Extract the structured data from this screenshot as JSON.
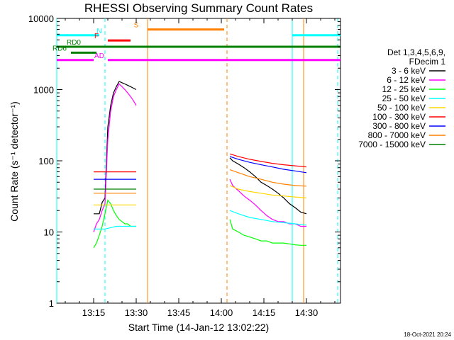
{
  "stamp": "18-Oct-2021 20:24",
  "chart_data": {
    "type": "line",
    "title": "RHESSI Observing Summary Count Rates",
    "xlabel": "Start Time (14-Jan-12 13:02:22)",
    "ylabel": "Count Rate (s⁻¹ detector⁻¹)",
    "y_scale": "log",
    "ylim": [
      1,
      10000
    ],
    "xlim": [
      "13:02",
      "14:42"
    ],
    "x_ticks": [
      "13:15",
      "13:30",
      "13:45",
      "14:00",
      "14:15",
      "14:30"
    ],
    "y_ticks": [
      "1",
      "10",
      "100",
      "1000",
      "10000"
    ],
    "legend": {
      "header": [
        "Det 1,3,4,5,6,9,",
        "FDecim 1"
      ],
      "position": "right"
    },
    "series": [
      {
        "name": "3 - 6 keV",
        "color": "#000000",
        "segments": [
          {
            "x": [
              "13:15",
              "13:16",
              "13:17",
              "13:18",
              "13:19",
              "13:20",
              "13:21",
              "13:22",
              "13:23",
              "13:24",
              "13:25",
              "13:26",
              "13:27",
              "13:28",
              "13:29",
              "13:30"
            ],
            "y": [
              18,
              18,
              18,
              26,
              30,
              300,
              600,
              900,
              1100,
              1300,
              1250,
              1200,
              1150,
              1100,
              1050,
              1000
            ]
          },
          {
            "x": [
              "14:03",
              "14:04",
              "14:06",
              "14:08",
              "14:10",
              "14:12",
              "14:14",
              "14:16",
              "14:18",
              "14:20",
              "14:22",
              "14:24",
              "14:26",
              "14:28",
              "14:30"
            ],
            "y": [
              110,
              100,
              90,
              80,
              70,
              60,
              50,
              45,
              40,
              35,
              30,
              25,
              22,
              19,
              18
            ]
          }
        ]
      },
      {
        "name": "6 - 12 keV",
        "color": "#ff00ff",
        "segments": [
          {
            "x": [
              "13:15",
              "13:16",
              "13:17",
              "13:18",
              "13:19",
              "13:20",
              "13:21",
              "13:22",
              "13:23",
              "13:24",
              "13:25",
              "13:26",
              "13:27",
              "13:28",
              "13:29",
              "13:30"
            ],
            "y": [
              10,
              13,
              15,
              20,
              25,
              200,
              500,
              800,
              1000,
              1200,
              1100,
              1000,
              900,
              800,
              700,
              600
            ]
          },
          {
            "x": [
              "14:03",
              "14:04",
              "14:06",
              "14:08",
              "14:10",
              "14:12",
              "14:14",
              "14:16",
              "14:18",
              "14:20",
              "14:22",
              "14:24",
              "14:26",
              "14:28",
              "14:30"
            ],
            "y": [
              55,
              45,
              38,
              32,
              28,
              24,
              20,
              17,
              15,
              14,
              14,
              13,
              13,
              12,
              12
            ]
          }
        ]
      },
      {
        "name": "12 - 25 keV",
        "color": "#00ff00",
        "segments": [
          {
            "x": [
              "13:15",
              "13:16",
              "13:17",
              "13:18",
              "13:19",
              "13:20",
              "13:21",
              "13:22",
              "13:23",
              "13:24",
              "13:25",
              "13:26",
              "13:27",
              "13:28",
              "13:29",
              "13:30"
            ],
            "y": [
              6,
              7,
              9,
              12,
              18,
              28,
              25,
              20,
              17,
              15,
              14,
              13,
              13,
              12,
              12,
              12
            ]
          },
          {
            "x": [
              "14:03",
              "14:04",
              "14:06",
              "14:08",
              "14:10",
              "14:12",
              "14:14",
              "14:16",
              "14:18",
              "14:20",
              "14:22",
              "14:24",
              "14:26",
              "14:28",
              "14:30"
            ],
            "y": [
              15,
              11,
              10,
              9,
              8.5,
              8,
              7.5,
              7.5,
              7,
              7,
              7,
              6.8,
              6.6,
              6.5,
              6.5
            ]
          }
        ]
      },
      {
        "name": "25 - 50 keV",
        "color": "#00ffff",
        "segments": [
          {
            "x": [
              "13:15",
              "13:17",
              "13:19",
              "13:21",
              "13:23",
              "13:25",
              "13:27",
              "13:29",
              "13:30"
            ],
            "y": [
              11,
              11,
              11,
              11.5,
              12,
              12,
              12,
              12,
              12
            ]
          },
          {
            "x": [
              "14:03",
              "14:06",
              "14:10",
              "14:14",
              "14:18",
              "14:22",
              "14:26",
              "14:30"
            ],
            "y": [
              20,
              18,
              16,
              15,
              14,
              13.5,
              13,
              12.5
            ]
          }
        ]
      },
      {
        "name": "50 - 100 keV",
        "color": "#ffd700",
        "segments": [
          {
            "x": [
              "13:15",
              "13:17",
              "13:19",
              "13:21",
              "13:23",
              "13:25",
              "13:27",
              "13:29",
              "13:30"
            ],
            "y": [
              24,
              24,
              24,
              24,
              24,
              24,
              24,
              24,
              24
            ]
          },
          {
            "x": [
              "14:03",
              "14:06",
              "14:10",
              "14:14",
              "14:18",
              "14:22",
              "14:26",
              "14:30"
            ],
            "y": [
              45,
              40,
              37,
              35,
              33,
              32,
              31,
              30
            ]
          }
        ]
      },
      {
        "name": "100 - 300 keV",
        "color": "#ff0000",
        "segments": [
          {
            "x": [
              "13:15",
              "13:17",
              "13:19",
              "13:21",
              "13:23",
              "13:25",
              "13:27",
              "13:29",
              "13:30"
            ],
            "y": [
              70,
              70,
              70,
              70,
              70,
              70,
              70,
              70,
              70
            ]
          },
          {
            "x": [
              "14:03",
              "14:06",
              "14:10",
              "14:14",
              "14:18",
              "14:22",
              "14:26",
              "14:30"
            ],
            "y": [
              125,
              115,
              105,
              98,
              92,
              88,
              85,
              82
            ]
          }
        ]
      },
      {
        "name": "300 - 800 keV",
        "color": "#0000ff",
        "segments": [
          {
            "x": [
              "13:15",
              "13:17",
              "13:19",
              "13:21",
              "13:23",
              "13:25",
              "13:27",
              "13:29",
              "13:30"
            ],
            "y": [
              55,
              55,
              55,
              55,
              55,
              55,
              55,
              55,
              55
            ]
          },
          {
            "x": [
              "14:03",
              "14:06",
              "14:10",
              "14:14",
              "14:18",
              "14:22",
              "14:26",
              "14:30"
            ],
            "y": [
              115,
              105,
              95,
              88,
              82,
              76,
              72,
              68
            ]
          }
        ]
      },
      {
        "name": "800 - 7000 keV",
        "color": "#ff8000",
        "segments": [
          {
            "x": [
              "13:15",
              "13:17",
              "13:19",
              "13:21",
              "13:23",
              "13:25",
              "13:27",
              "13:29",
              "13:30"
            ],
            "y": [
              35,
              35,
              35,
              35,
              35,
              35,
              35,
              35,
              35
            ]
          },
          {
            "x": [
              "14:03",
              "14:06",
              "14:10",
              "14:14",
              "14:18",
              "14:22",
              "14:26",
              "14:30"
            ],
            "y": [
              75,
              68,
              60,
              55,
              50,
              47,
              45,
              44
            ]
          }
        ]
      },
      {
        "name": "7000 - 15000 keV",
        "color": "#008000",
        "segments": [
          {
            "x": [
              "13:15",
              "13:17",
              "13:19",
              "13:21",
              "13:23",
              "13:25",
              "13:27",
              "13:29",
              "13:30"
            ],
            "y": [
              40,
              40,
              40,
              40,
              40,
              40,
              40,
              40,
              40
            ]
          }
        ]
      }
    ],
    "flags": [
      {
        "label": "N",
        "color": "#00ffff",
        "level": 5800,
        "label_at": "13:17",
        "segments": [
          [
            "13:02",
            "13:17"
          ],
          [
            "14:25",
            "14:42"
          ]
        ]
      },
      {
        "label": "S",
        "color": "#ff8000",
        "level": 7000,
        "label_at": "13:30",
        "segments": [
          [
            "13:34",
            "14:01"
          ]
        ]
      },
      {
        "label": "F",
        "color": "#ff0000",
        "level": 4900,
        "label_at": "13:16",
        "segments": [
          [
            "13:20",
            "13:28"
          ]
        ]
      },
      {
        "label": "RD0",
        "color": "#008000",
        "level": 4000,
        "label_at": "13:08",
        "segments": [
          [
            "13:02",
            "14:42"
          ]
        ]
      },
      {
        "label": "RD6",
        "color": "#008000",
        "level": 3300,
        "label_at": "13:03",
        "segments": [
          [
            "13:07",
            "13:16"
          ]
        ]
      },
      {
        "label": "AD",
        "color": "#ff00ff",
        "level": 2600,
        "label_at": "13:17",
        "segments": [
          [
            "13:02",
            "13:15"
          ],
          [
            "13:20",
            "13:26"
          ],
          [
            "13:26",
            "14:42"
          ]
        ]
      }
    ],
    "vlines": [
      {
        "x": "13:02",
        "color": "#00ffff",
        "style": "solid"
      },
      {
        "x": "13:19",
        "color": "#00ffff",
        "style": "dashed"
      },
      {
        "x": "13:34",
        "color": "#ff8000",
        "style": "solid"
      },
      {
        "x": "14:02",
        "color": "#ff8000",
        "style": "dashed"
      },
      {
        "x": "14:25",
        "color": "#00ffff",
        "style": "solid"
      },
      {
        "x": "14:29",
        "color": "#ff8000",
        "style": "solid"
      },
      {
        "x": "14:41",
        "color": "#00ffff",
        "style": "dashed"
      }
    ]
  }
}
